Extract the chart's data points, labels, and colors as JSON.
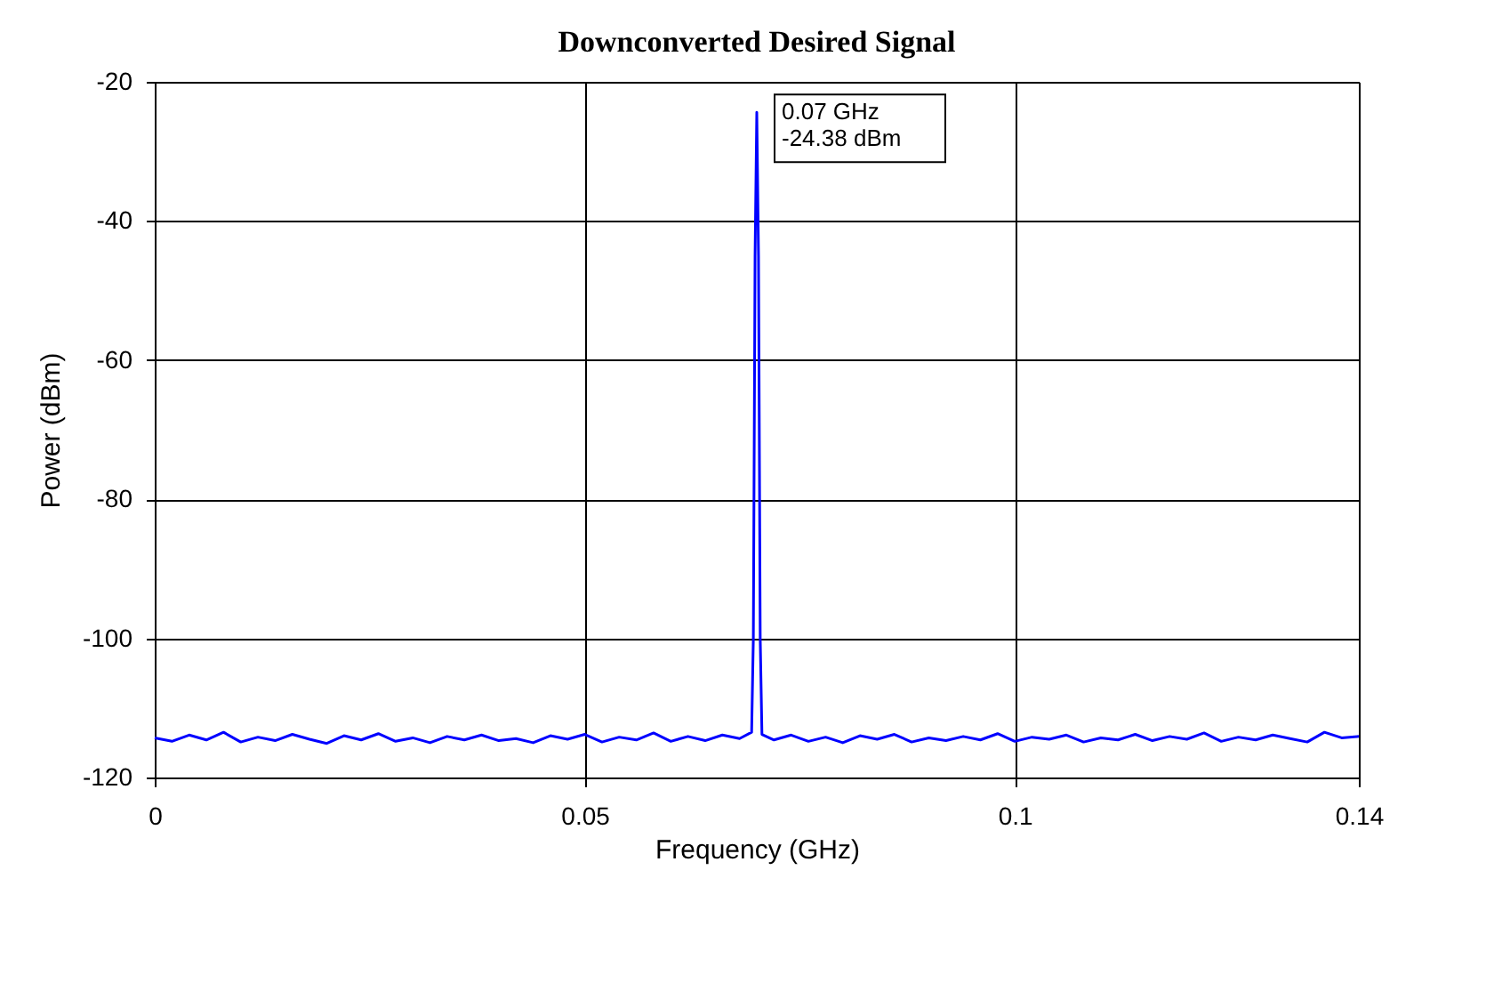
{
  "chart_data": {
    "type": "line",
    "title": "Downconverted Desired Signal",
    "xlabel": "Frequency (GHz)",
    "ylabel": "Power (dBm)",
    "xlim": [
      0,
      0.14
    ],
    "xticks": [
      0,
      0.05,
      0.1,
      0.14
    ],
    "ylim": [
      -120,
      -20
    ],
    "yticks": [
      -120,
      -100,
      -80,
      -60,
      -40,
      -20
    ],
    "grid": true,
    "marker": "none",
    "line_style": "solid",
    "annotations": [
      {
        "text": "0.07 GHz\n-24.38 dBm",
        "x": 0.07,
        "y": -24.38
      }
    ],
    "series": [
      {
        "color": "#0000ff",
        "x": [
          0,
          0.002,
          0.004,
          0.006,
          0.008,
          0.01,
          0.012,
          0.014,
          0.016,
          0.018,
          0.02,
          0.022,
          0.024,
          0.026,
          0.028,
          0.03,
          0.032,
          0.034,
          0.036,
          0.038,
          0.04,
          0.042,
          0.044,
          0.046,
          0.048,
          0.05,
          0.052,
          0.054,
          0.056,
          0.058,
          0.06,
          0.062,
          0.064,
          0.066,
          0.068,
          0.0694,
          0.0696,
          0.0698,
          0.07,
          0.0702,
          0.0704,
          0.0706,
          0.072,
          0.074,
          0.076,
          0.078,
          0.08,
          0.082,
          0.084,
          0.086,
          0.088,
          0.09,
          0.092,
          0.094,
          0.096,
          0.098,
          0.1,
          0.102,
          0.104,
          0.106,
          0.108,
          0.11,
          0.112,
          0.114,
          0.116,
          0.118,
          0.12,
          0.122,
          0.124,
          0.126,
          0.128,
          0.13,
          0.132,
          0.134,
          0.136,
          0.138,
          0.14
        ],
        "values": [
          -114.3,
          -114.8,
          -113.9,
          -114.6,
          -113.5,
          -114.9,
          -114.2,
          -114.7,
          -113.8,
          -114.5,
          -115.1,
          -114.0,
          -114.6,
          -113.7,
          -114.8,
          -114.3,
          -115.0,
          -114.1,
          -114.6,
          -113.9,
          -114.7,
          -114.4,
          -115.0,
          -114.0,
          -114.5,
          -113.8,
          -114.9,
          -114.2,
          -114.6,
          -113.6,
          -114.8,
          -114.1,
          -114.7,
          -113.9,
          -114.4,
          -113.5,
          -100,
          -45,
          -24.38,
          -45,
          -100,
          -113.8,
          -114.6,
          -113.9,
          -114.8,
          -114.2,
          -115.0,
          -114.0,
          -114.5,
          -113.8,
          -114.9,
          -114.3,
          -114.7,
          -114.1,
          -114.6,
          -113.7,
          -114.8,
          -114.2,
          -114.5,
          -113.9,
          -114.9,
          -114.3,
          -114.6,
          -113.8,
          -114.7,
          -114.1,
          -114.5,
          -113.6,
          -114.8,
          -114.2,
          -114.6,
          -113.9,
          -114.4,
          -114.9,
          -113.5,
          -114.3,
          -114.1
        ]
      }
    ]
  }
}
